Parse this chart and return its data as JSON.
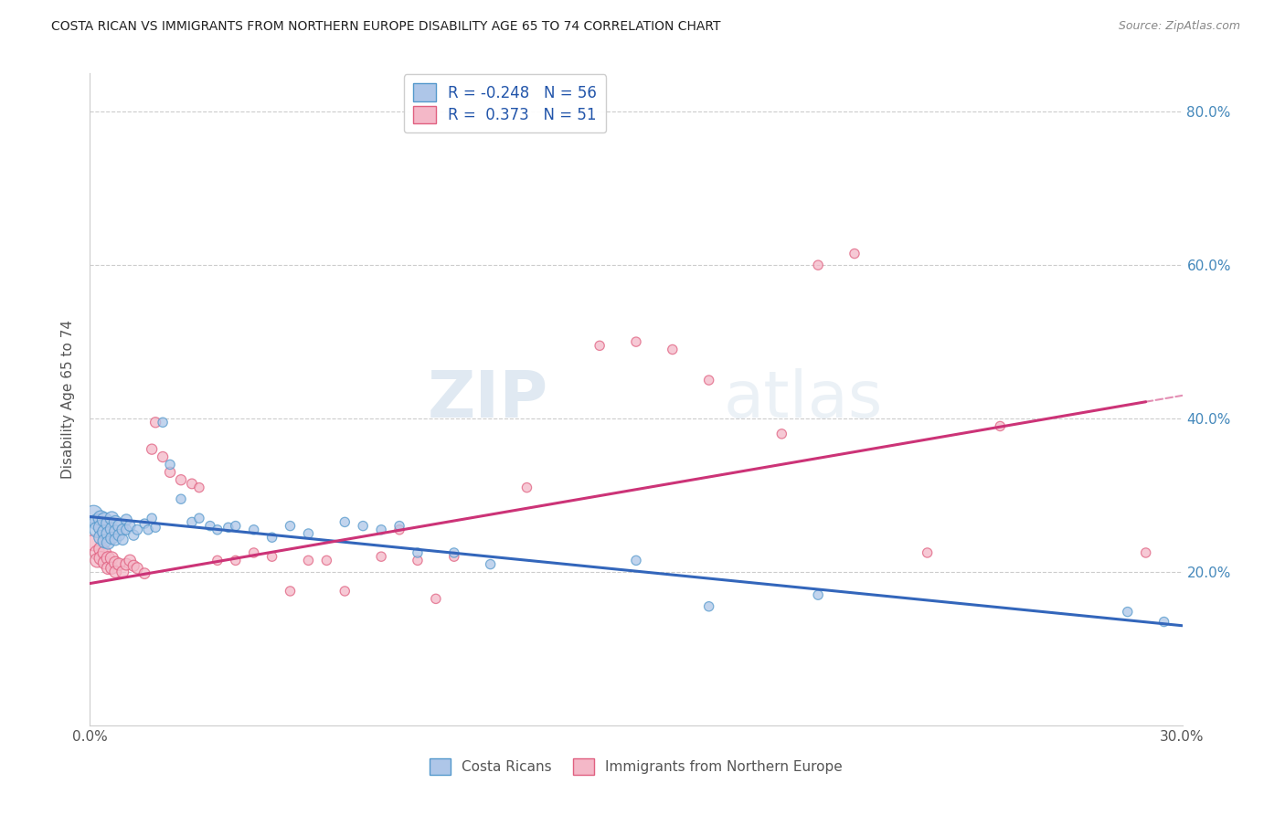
{
  "title": "COSTA RICAN VS IMMIGRANTS FROM NORTHERN EUROPE DISABILITY AGE 65 TO 74 CORRELATION CHART",
  "source": "Source: ZipAtlas.com",
  "ylabel": "Disability Age 65 to 74",
  "xmin": 0.0,
  "xmax": 0.3,
  "ymin": 0.0,
  "ymax": 0.85,
  "yticks": [
    0.2,
    0.4,
    0.6,
    0.8
  ],
  "xticks": [
    0.0,
    0.05,
    0.1,
    0.15,
    0.2,
    0.25,
    0.3
  ],
  "color_blue": "#aec6e8",
  "color_pink": "#f4b8c8",
  "edge_blue": "#5599cc",
  "edge_pink": "#e06080",
  "line_blue": "#3366bb",
  "line_pink": "#cc3377",
  "background": "#ffffff",
  "grid_color": "#cccccc",
  "r_blue": -0.248,
  "n_blue": 56,
  "r_pink": 0.373,
  "n_pink": 51,
  "blue_line_y0": 0.272,
  "blue_line_y1": 0.13,
  "pink_line_y0": 0.185,
  "pink_line_y1": 0.43,
  "costa_rican_x": [
    0.001,
    0.002,
    0.002,
    0.003,
    0.003,
    0.003,
    0.004,
    0.004,
    0.004,
    0.005,
    0.005,
    0.005,
    0.006,
    0.006,
    0.006,
    0.007,
    0.007,
    0.007,
    0.008,
    0.008,
    0.009,
    0.009,
    0.01,
    0.01,
    0.011,
    0.012,
    0.013,
    0.015,
    0.016,
    0.017,
    0.018,
    0.02,
    0.022,
    0.025,
    0.028,
    0.03,
    0.033,
    0.035,
    0.038,
    0.04,
    0.045,
    0.05,
    0.055,
    0.06,
    0.07,
    0.075,
    0.08,
    0.085,
    0.09,
    0.1,
    0.11,
    0.15,
    0.17,
    0.2,
    0.285,
    0.295
  ],
  "costa_rican_y": [
    0.275,
    0.265,
    0.255,
    0.27,
    0.258,
    0.245,
    0.268,
    0.252,
    0.24,
    0.263,
    0.25,
    0.238,
    0.27,
    0.256,
    0.244,
    0.265,
    0.253,
    0.242,
    0.26,
    0.248,
    0.255,
    0.242,
    0.268,
    0.255,
    0.26,
    0.248,
    0.255,
    0.263,
    0.255,
    0.27,
    0.258,
    0.395,
    0.34,
    0.295,
    0.265,
    0.27,
    0.26,
    0.255,
    0.258,
    0.26,
    0.255,
    0.245,
    0.26,
    0.25,
    0.265,
    0.26,
    0.255,
    0.26,
    0.225,
    0.225,
    0.21,
    0.215,
    0.155,
    0.17,
    0.148,
    0.135
  ],
  "costa_rican_size": [
    200,
    160,
    150,
    140,
    130,
    120,
    130,
    120,
    110,
    120,
    110,
    100,
    110,
    100,
    90,
    100,
    90,
    80,
    90,
    80,
    80,
    70,
    75,
    65,
    70,
    65,
    60,
    55,
    55,
    55,
    55,
    55,
    55,
    55,
    55,
    55,
    55,
    55,
    55,
    55,
    55,
    55,
    55,
    55,
    55,
    55,
    55,
    55,
    55,
    55,
    55,
    55,
    55,
    55,
    55,
    55
  ],
  "northern_europe_x": [
    0.001,
    0.002,
    0.002,
    0.003,
    0.003,
    0.004,
    0.004,
    0.005,
    0.005,
    0.006,
    0.006,
    0.007,
    0.007,
    0.008,
    0.009,
    0.01,
    0.011,
    0.012,
    0.013,
    0.015,
    0.017,
    0.018,
    0.02,
    0.022,
    0.025,
    0.028,
    0.03,
    0.035,
    0.04,
    0.045,
    0.05,
    0.055,
    0.06,
    0.065,
    0.07,
    0.08,
    0.085,
    0.09,
    0.095,
    0.1,
    0.12,
    0.14,
    0.15,
    0.16,
    0.17,
    0.19,
    0.2,
    0.21,
    0.23,
    0.25,
    0.29
  ],
  "northern_europe_y": [
    0.238,
    0.225,
    0.215,
    0.23,
    0.218,
    0.225,
    0.212,
    0.218,
    0.205,
    0.218,
    0.205,
    0.212,
    0.2,
    0.21,
    0.2,
    0.21,
    0.215,
    0.208,
    0.205,
    0.198,
    0.36,
    0.395,
    0.35,
    0.33,
    0.32,
    0.315,
    0.31,
    0.215,
    0.215,
    0.225,
    0.22,
    0.175,
    0.215,
    0.215,
    0.175,
    0.22,
    0.255,
    0.215,
    0.165,
    0.22,
    0.31,
    0.495,
    0.5,
    0.49,
    0.45,
    0.38,
    0.6,
    0.615,
    0.225,
    0.39,
    0.225
  ],
  "northern_europe_size": [
    160,
    130,
    120,
    120,
    110,
    110,
    100,
    105,
    95,
    100,
    90,
    95,
    85,
    90,
    85,
    85,
    80,
    75,
    75,
    70,
    65,
    65,
    65,
    65,
    65,
    60,
    55,
    55,
    55,
    55,
    55,
    55,
    55,
    55,
    55,
    55,
    55,
    55,
    55,
    55,
    55,
    55,
    55,
    55,
    55,
    55,
    55,
    55,
    55,
    55,
    55
  ]
}
